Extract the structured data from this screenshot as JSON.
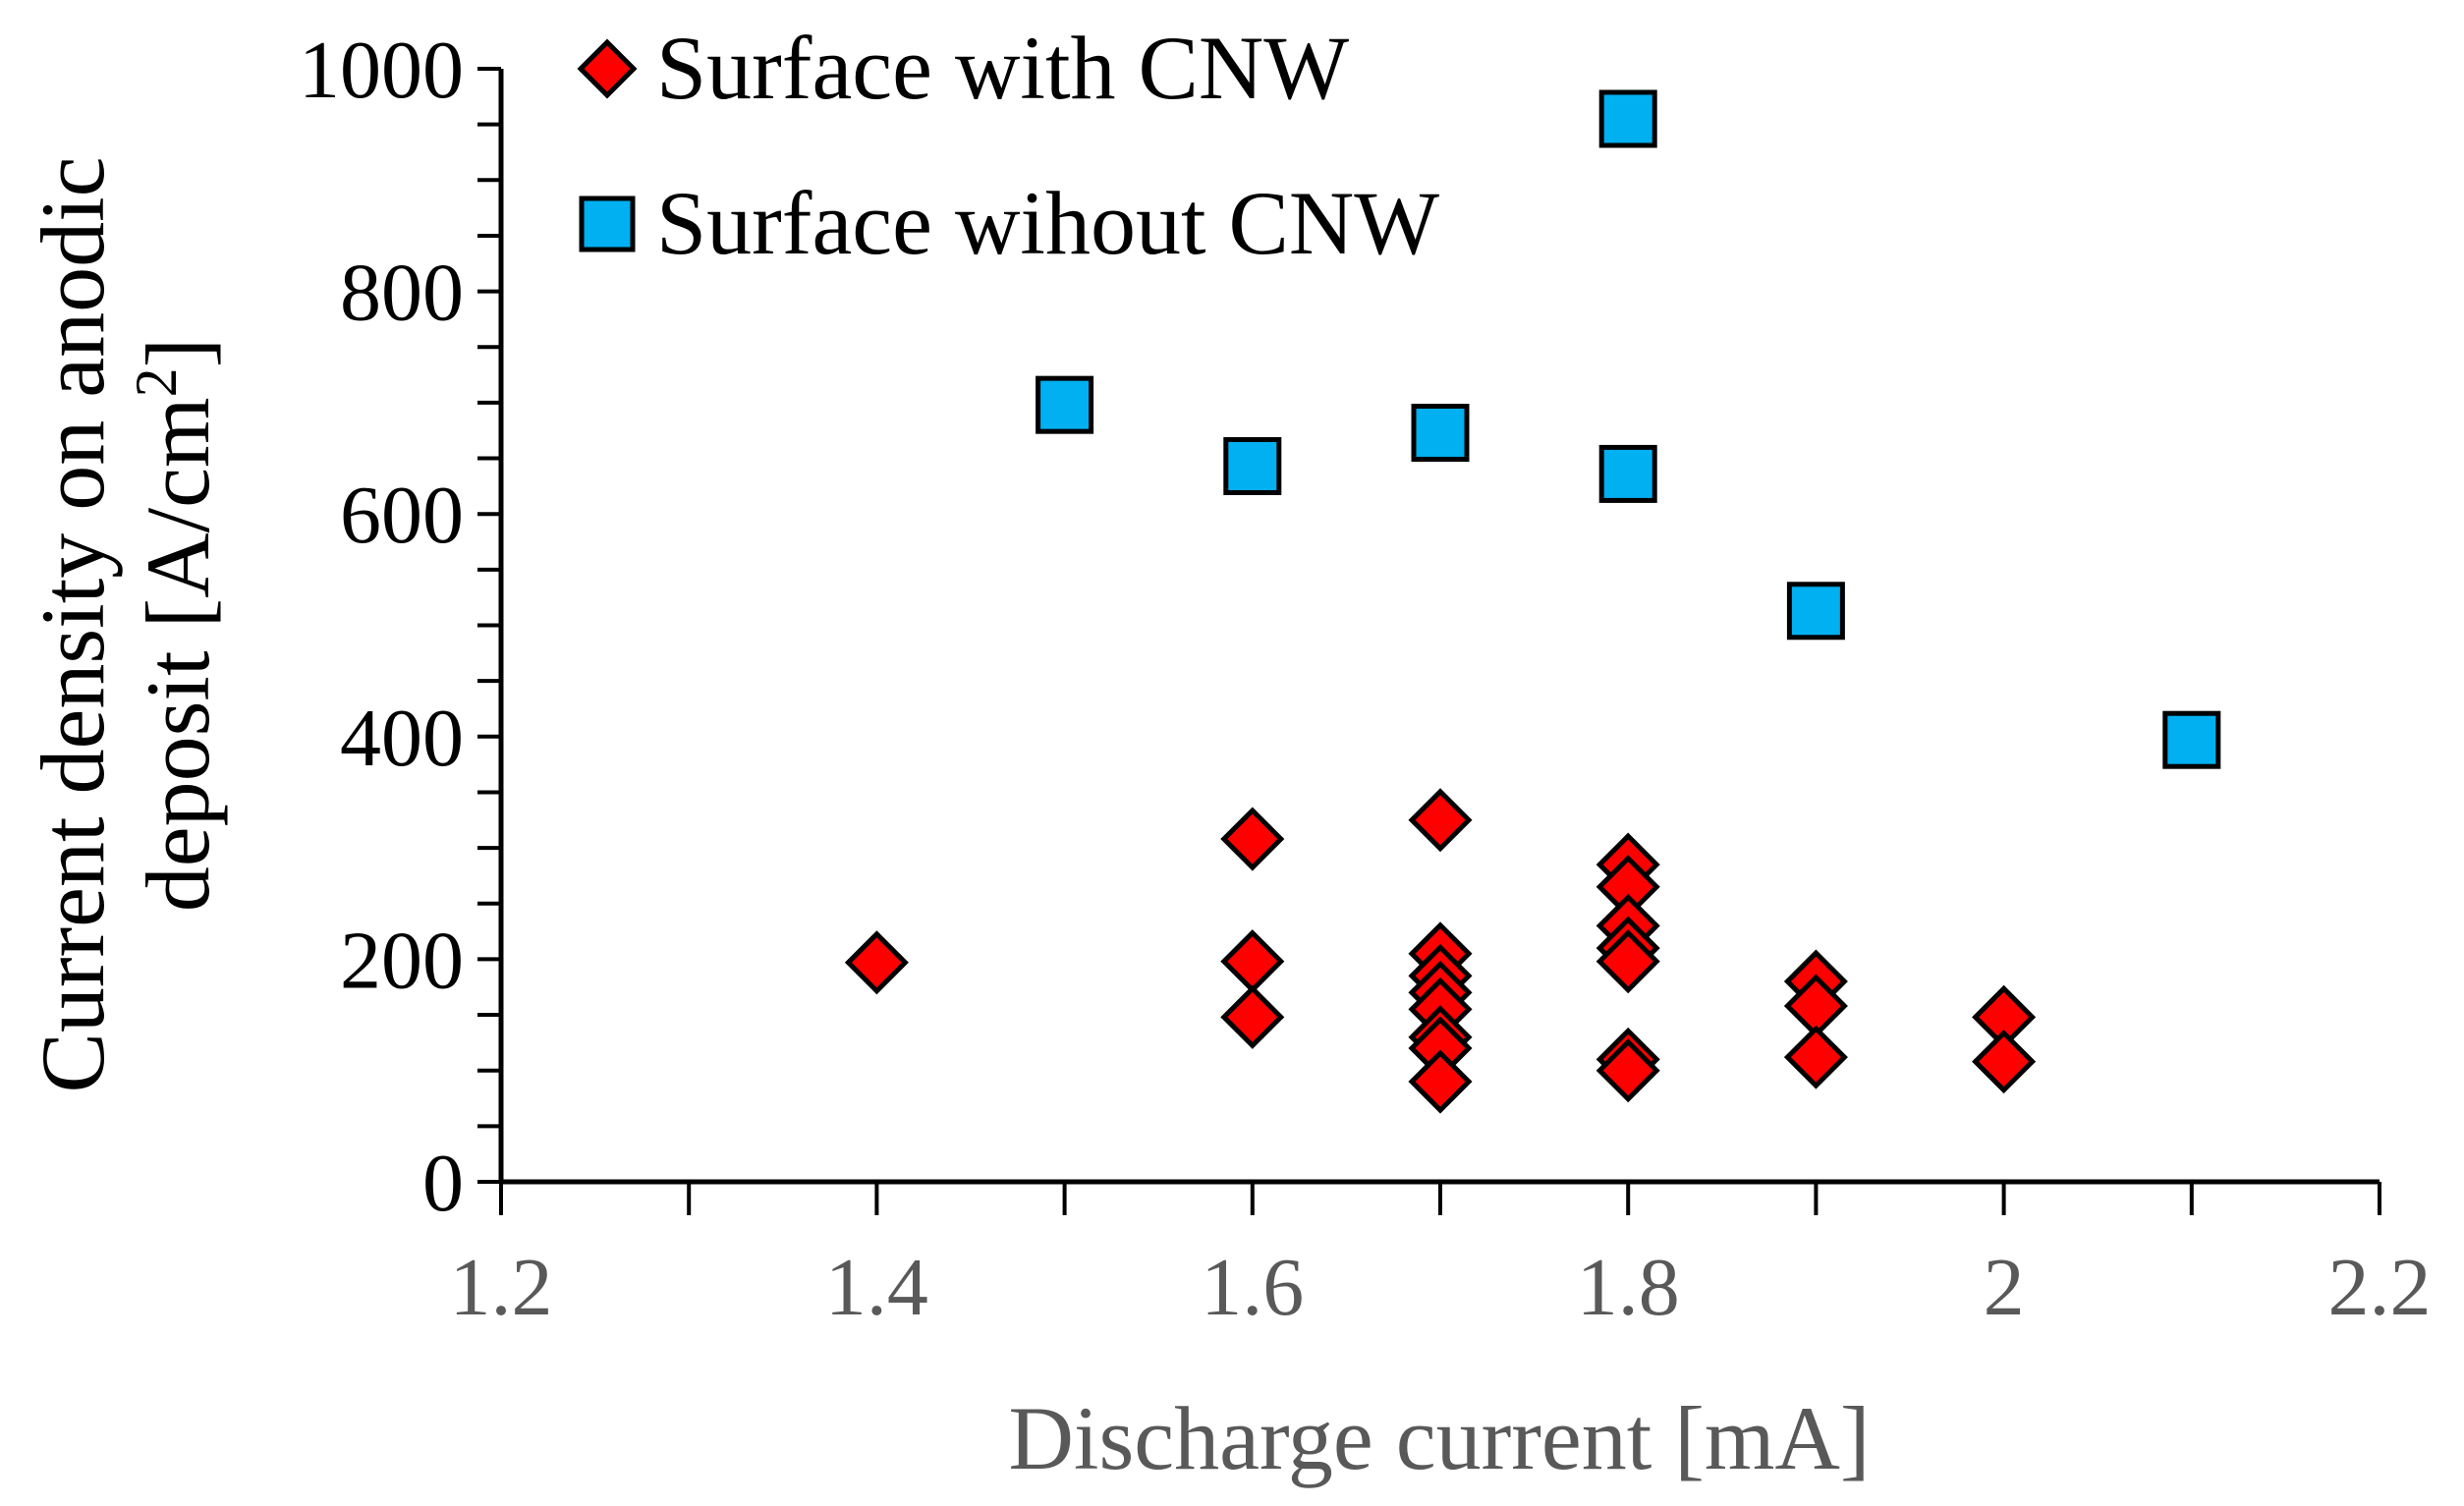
{
  "chart_data": {
    "type": "scatter",
    "title": "",
    "xlabel": "Discharge current [mA]",
    "ylabel_line1": "Current density on anodic",
    "ylabel_line2": "deposit [A/cm",
    "ylabel_sup": "2",
    "ylabel_end": "]",
    "xlim": [
      1.2,
      2.2
    ],
    "ylim": [
      0,
      1000
    ],
    "x_ticks": [
      1.2,
      1.3,
      1.4,
      1.5,
      1.6,
      1.7,
      1.8,
      1.9,
      2.0,
      2.1,
      2.2
    ],
    "x_tick_labels": [
      "1.2",
      "1.4",
      "1.6",
      "1.8",
      "2",
      "2.2"
    ],
    "x_tick_label_values": [
      1.2,
      1.4,
      1.6,
      1.8,
      2.0,
      2.2
    ],
    "y_ticks_major": [
      0,
      200,
      400,
      600,
      800,
      1000
    ],
    "y_tick_labels": [
      "0",
      "200",
      "400",
      "600",
      "800",
      "1000"
    ],
    "y_ticks_minor_step": 50,
    "grid": false,
    "legend_position": "top-left",
    "series": [
      {
        "name": "Surface with CNW",
        "marker": "diamond",
        "color": "#FF0000",
        "points": [
          {
            "x": 1.4,
            "y": 197
          },
          {
            "x": 1.6,
            "y": 308
          },
          {
            "x": 1.6,
            "y": 198
          },
          {
            "x": 1.6,
            "y": 148
          },
          {
            "x": 1.7,
            "y": 325
          },
          {
            "x": 1.7,
            "y": 205
          },
          {
            "x": 1.7,
            "y": 185
          },
          {
            "x": 1.7,
            "y": 170
          },
          {
            "x": 1.7,
            "y": 155
          },
          {
            "x": 1.7,
            "y": 130
          },
          {
            "x": 1.7,
            "y": 120
          },
          {
            "x": 1.7,
            "y": 90
          },
          {
            "x": 1.8,
            "y": 285
          },
          {
            "x": 1.8,
            "y": 265
          },
          {
            "x": 1.8,
            "y": 230
          },
          {
            "x": 1.8,
            "y": 210
          },
          {
            "x": 1.8,
            "y": 198
          },
          {
            "x": 1.8,
            "y": 110
          },
          {
            "x": 1.8,
            "y": 100
          },
          {
            "x": 1.9,
            "y": 180
          },
          {
            "x": 1.9,
            "y": 158
          },
          {
            "x": 1.9,
            "y": 112
          },
          {
            "x": 2.0,
            "y": 148
          },
          {
            "x": 2.0,
            "y": 108
          }
        ]
      },
      {
        "name": "Surface wihout CNW",
        "marker": "square",
        "color": "#00B0F0",
        "points": [
          {
            "x": 1.5,
            "y": 698
          },
          {
            "x": 1.6,
            "y": 643
          },
          {
            "x": 1.7,
            "y": 673
          },
          {
            "x": 1.8,
            "y": 955
          },
          {
            "x": 1.8,
            "y": 636
          },
          {
            "x": 1.9,
            "y": 513
          },
          {
            "x": 2.1,
            "y": 397
          }
        ]
      }
    ]
  }
}
